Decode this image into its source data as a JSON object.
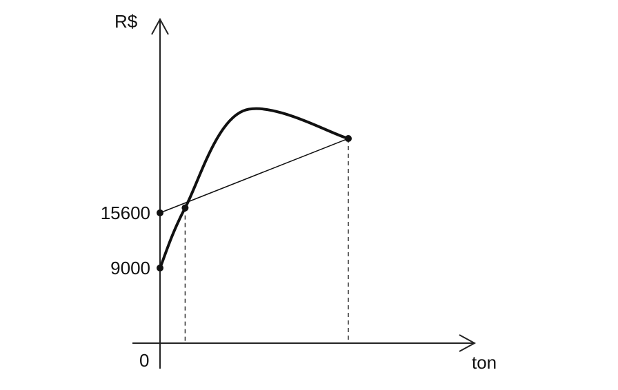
{
  "chart_data": {
    "type": "line",
    "title": "",
    "xlabel": "ton",
    "ylabel": "R$",
    "origin_label": "0",
    "y_tick_labels": [
      "15600",
      "9000"
    ],
    "y_ticks": [
      15600,
      9000
    ],
    "series": [
      {
        "kind": "parabola",
        "points": [
          {
            "x": 0,
            "y": 9000
          },
          {
            "x": 1,
            "y": 16200
          },
          {
            "x": 3.3,
            "y": 27800
          },
          {
            "x": 7.5,
            "y": 24500
          }
        ]
      },
      {
        "kind": "line",
        "points": [
          {
            "x": 0,
            "y": 15600
          },
          {
            "x": 1,
            "y": 16200
          },
          {
            "x": 7.5,
            "y": 24500
          }
        ]
      }
    ],
    "intersections": [
      {
        "x": 1,
        "y": 16200
      },
      {
        "x": 7.5,
        "y": 24500
      }
    ],
    "grid": false,
    "legend": "none"
  }
}
